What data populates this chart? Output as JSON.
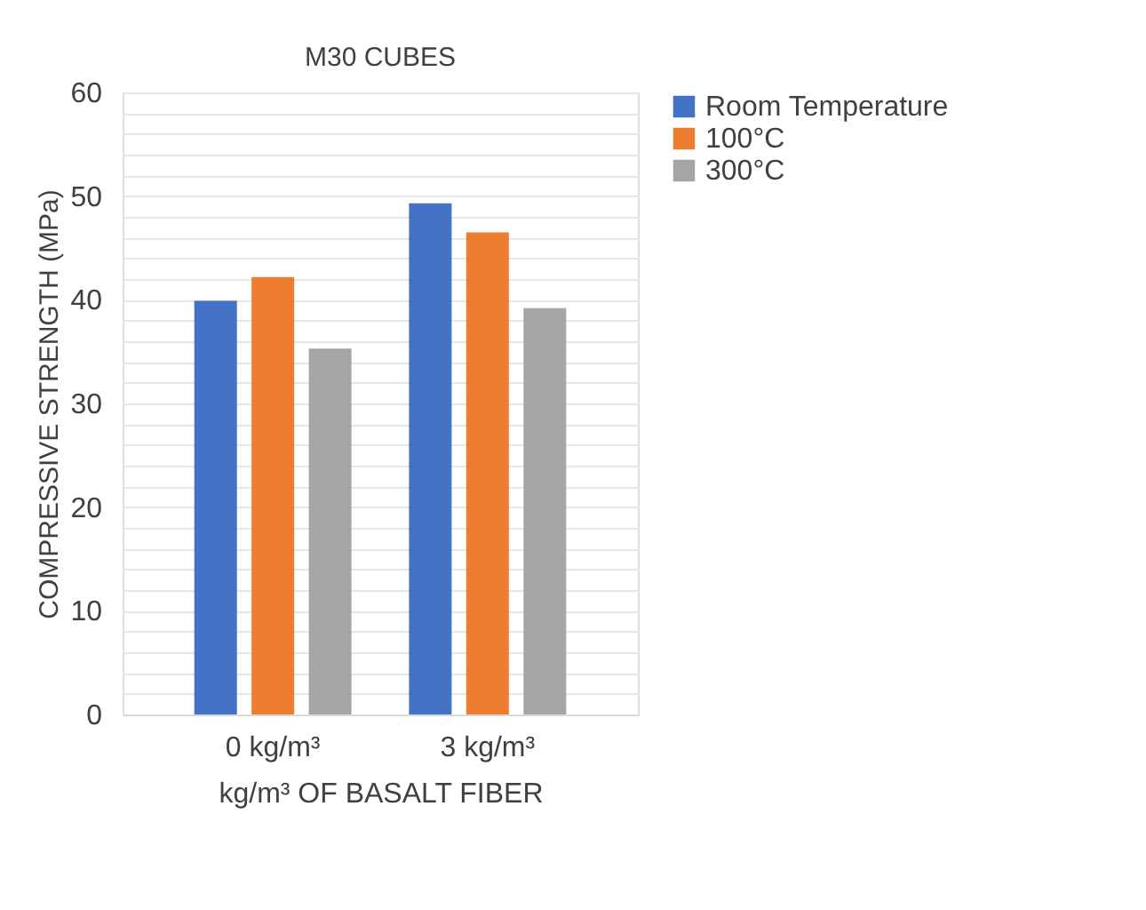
{
  "chart_data": {
    "type": "bar",
    "title": "M30 CUBES",
    "xlabel": "kg/m³ OF BASALT FIBER",
    "ylabel": "COMPRESSIVE STRENGTH (MPa)",
    "categories": [
      "0 kg/m³",
      "3 kg/m³"
    ],
    "series": [
      {
        "name": "Room Temperature",
        "color": "#4472c4",
        "values": [
          39.9,
          49.3
        ]
      },
      {
        "name": "100°C",
        "color": "#ed7d31",
        "values": [
          42.2,
          46.5
        ]
      },
      {
        "name": "300°C",
        "color": "#a5a5a5",
        "values": [
          35.3,
          39.2
        ]
      }
    ],
    "ylim": [
      0,
      60
    ],
    "yticks": [
      0,
      {
        "value": 2,
        "label": null
      },
      {
        "value": 4,
        "label": null
      },
      {
        "value": 6,
        "label": null
      },
      {
        "value": 8,
        "label": null
      },
      10,
      {
        "value": 12,
        "label": null
      },
      {
        "value": 14,
        "label": null
      },
      {
        "value": 16,
        "label": null
      },
      {
        "value": 18,
        "label": null
      },
      20,
      {
        "value": 22,
        "label": null
      },
      {
        "value": 24,
        "label": null
      },
      {
        "value": 26,
        "label": null
      },
      {
        "value": 28,
        "label": null
      },
      30,
      {
        "value": 32,
        "label": null
      },
      {
        "value": 34,
        "label": null
      },
      {
        "value": 36,
        "label": null
      },
      {
        "value": 38,
        "label": null
      },
      40,
      {
        "value": 42,
        "label": null
      },
      {
        "value": 44,
        "label": null
      },
      {
        "value": 46,
        "label": null
      },
      {
        "value": 48,
        "label": null
      },
      50,
      {
        "value": 52,
        "label": null
      },
      {
        "value": 54,
        "label": null
      },
      {
        "value": 56,
        "label": null
      },
      {
        "value": 58,
        "label": null
      },
      60
    ],
    "grid": "y",
    "legend": "right"
  }
}
